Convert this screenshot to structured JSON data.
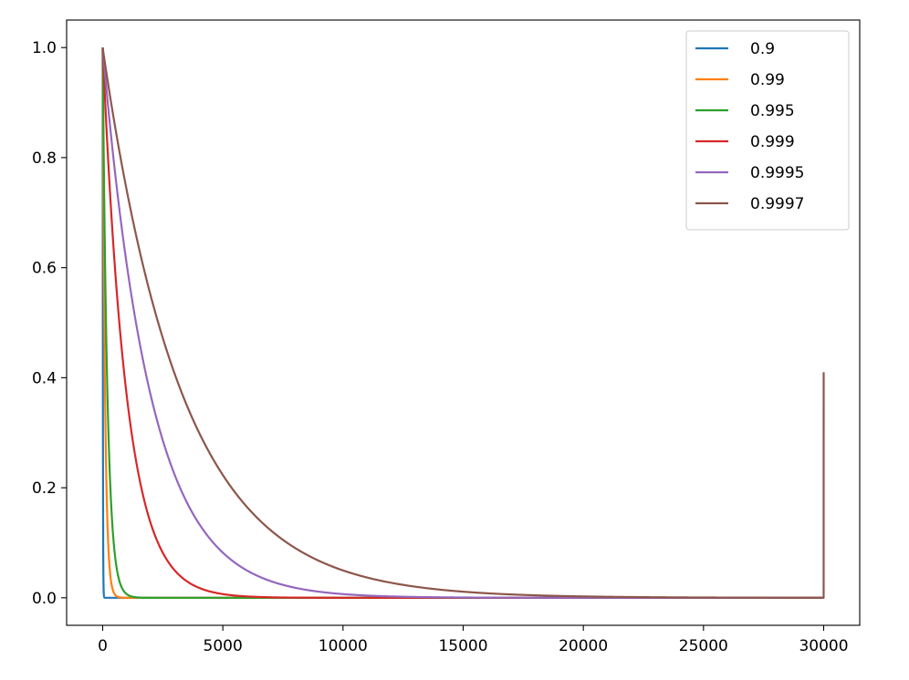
{
  "chart_data": {
    "type": "line",
    "title": "",
    "xlabel": "",
    "ylabel": "",
    "xlim": [
      -1500,
      31500
    ],
    "ylim": [
      -0.05,
      1.05
    ],
    "x_ticks": [
      0,
      5000,
      10000,
      15000,
      20000,
      25000,
      30000
    ],
    "x_tick_labels": [
      "0",
      "5000",
      "10000",
      "15000",
      "20000",
      "25000",
      "30000"
    ],
    "y_ticks": [
      0.0,
      0.2,
      0.4,
      0.6,
      0.8,
      1.0
    ],
    "y_tick_labels": [
      "0.0",
      "0.2",
      "0.4",
      "0.6",
      "0.8",
      "1.0"
    ],
    "grid": false,
    "legend_position": "top-right",
    "curve_model": "y = decay ^ x for 0 <= x < 30000; the final point at x = 30000 rises to end_value",
    "series": [
      {
        "name": "0.9",
        "decay": 0.9,
        "x_end": 30000,
        "end_value": 0.0,
        "color": "#1f77b4"
      },
      {
        "name": "0.99",
        "decay": 0.99,
        "x_end": 30000,
        "end_value": 0.0,
        "color": "#ff7f0e"
      },
      {
        "name": "0.995",
        "decay": 0.995,
        "x_end": 30000,
        "end_value": 0.0,
        "color": "#2ca02c"
      },
      {
        "name": "0.999",
        "decay": 0.999,
        "x_end": 30000,
        "end_value": 0.0,
        "color": "#d62728"
      },
      {
        "name": "0.9995",
        "decay": 0.9995,
        "x_end": 30000,
        "end_value": 0.0,
        "color": "#9467bd"
      },
      {
        "name": "0.9997",
        "decay": 0.9997,
        "x_end": 30000,
        "end_value": 0.41,
        "color": "#8c564b"
      }
    ]
  }
}
